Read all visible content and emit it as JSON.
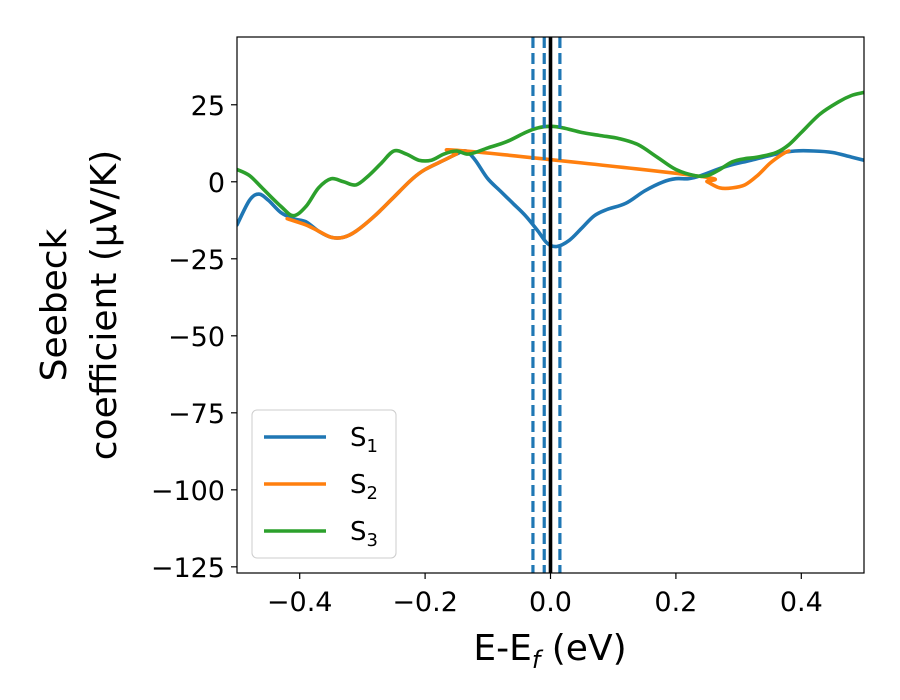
{
  "chart_data": {
    "type": "line",
    "xlabel": "E-E",
    "xlabel_sub": "f",
    "xlabel_unit": " (eV)",
    "ylabel_line1": "Seebeck",
    "ylabel_line2": "coefficient  (μV/K)",
    "xlim": [
      -0.5,
      0.5
    ],
    "ylim": [
      -127,
      47
    ],
    "xticks": [
      -0.4,
      -0.2,
      0.0,
      0.2,
      0.4
    ],
    "xtick_labels": [
      "−0.4",
      "−0.2",
      "0.0",
      "0.2",
      "0.4"
    ],
    "yticks": [
      25,
      0,
      -25,
      -50,
      -75,
      -100,
      -125
    ],
    "ytick_labels": [
      "25",
      "0",
      "−25",
      "−50",
      "−75",
      "−100",
      "−125"
    ],
    "legend_position": "lower-left",
    "grid": false,
    "vlines": [
      {
        "x": 0.0,
        "style": "solid",
        "color": "#000000"
      },
      {
        "x": -0.028,
        "style": "dashed",
        "color": "#1f77b4"
      },
      {
        "x": -0.01,
        "style": "dashed",
        "color": "#1f77b4"
      },
      {
        "x": 0.015,
        "style": "dashed",
        "color": "#1f77b4"
      }
    ],
    "series": [
      {
        "name": "S",
        "sub": "1",
        "color": "#1f77b4",
        "points": [
          [
            -0.5,
            -14
          ],
          [
            -0.48,
            -6
          ],
          [
            -0.465,
            -4
          ],
          [
            -0.45,
            -6
          ],
          [
            -0.43,
            -10
          ],
          [
            -0.41,
            -12
          ],
          [
            -0.39,
            -13
          ],
          [
            -0.37,
            -16
          ],
          [
            -0.35,
            -18
          ],
          [
            -0.33,
            -18
          ],
          [
            -0.31,
            -16
          ],
          [
            -0.28,
            -11
          ],
          [
            -0.25,
            -5
          ],
          [
            -0.22,
            1
          ],
          [
            -0.2,
            4
          ],
          [
            -0.17,
            7
          ],
          [
            -0.15,
            9
          ],
          [
            -0.135,
            10
          ],
          [
            -0.12,
            7
          ],
          [
            -0.1,
            1
          ],
          [
            -0.08,
            -3
          ],
          [
            -0.06,
            -7
          ],
          [
            -0.04,
            -11
          ],
          [
            -0.02,
            -16
          ],
          [
            -0.005,
            -20
          ],
          [
            0.01,
            -21
          ],
          [
            0.03,
            -19
          ],
          [
            0.05,
            -15
          ],
          [
            0.07,
            -11
          ],
          [
            0.09,
            -9
          ],
          [
            0.12,
            -7
          ],
          [
            0.15,
            -3
          ],
          [
            0.18,
            0
          ],
          [
            0.2,
            1
          ],
          [
            0.22,
            1
          ],
          [
            0.24,
            2
          ],
          [
            0.28,
            5
          ],
          [
            0.32,
            7
          ],
          [
            0.36,
            9
          ],
          [
            0.39,
            10
          ],
          [
            0.42,
            10
          ],
          [
            0.45,
            9.5
          ],
          [
            0.48,
            8
          ],
          [
            0.5,
            7
          ]
        ]
      },
      {
        "name": "S",
        "sub": "2",
        "color": "#ff7f0e",
        "points": [
          [
            -0.42,
            -12
          ],
          [
            -0.39,
            -14
          ],
          [
            -0.37,
            -16
          ],
          [
            -0.35,
            -18
          ],
          [
            -0.33,
            -18
          ],
          [
            -0.31,
            -16
          ],
          [
            -0.28,
            -11
          ],
          [
            -0.25,
            -5
          ],
          [
            -0.22,
            1
          ],
          [
            -0.2,
            4
          ],
          [
            -0.17,
            7
          ],
          [
            -0.15,
            9
          ],
          [
            -0.135,
            10
          ],
          [
            0.23,
            2
          ],
          [
            0.25,
            0
          ],
          [
            0.27,
            -2
          ],
          [
            0.29,
            -2
          ],
          [
            0.31,
            -1
          ],
          [
            0.33,
            2
          ],
          [
            0.35,
            6
          ],
          [
            0.37,
            9
          ],
          [
            0.38,
            10
          ]
        ]
      },
      {
        "name": "S",
        "sub": "3",
        "color": "#2ca02c",
        "points": [
          [
            -0.5,
            4
          ],
          [
            -0.48,
            2
          ],
          [
            -0.46,
            -2
          ],
          [
            -0.43,
            -8
          ],
          [
            -0.41,
            -11
          ],
          [
            -0.39,
            -8
          ],
          [
            -0.37,
            -2
          ],
          [
            -0.35,
            1
          ],
          [
            -0.33,
            0
          ],
          [
            -0.31,
            -1
          ],
          [
            -0.29,
            2
          ],
          [
            -0.27,
            6
          ],
          [
            -0.25,
            10
          ],
          [
            -0.23,
            9
          ],
          [
            -0.21,
            7
          ],
          [
            -0.19,
            7
          ],
          [
            -0.17,
            9
          ],
          [
            -0.15,
            10
          ],
          [
            -0.13,
            9
          ],
          [
            -0.1,
            11
          ],
          [
            -0.07,
            13
          ],
          [
            -0.04,
            16
          ],
          [
            -0.02,
            17.5
          ],
          [
            0.0,
            18
          ],
          [
            0.02,
            17.5
          ],
          [
            0.05,
            16
          ],
          [
            0.08,
            15
          ],
          [
            0.11,
            14
          ],
          [
            0.14,
            12
          ],
          [
            0.17,
            8
          ],
          [
            0.2,
            4
          ],
          [
            0.23,
            2
          ],
          [
            0.25,
            2
          ],
          [
            0.27,
            4
          ],
          [
            0.29,
            6.5
          ],
          [
            0.31,
            7.5
          ],
          [
            0.33,
            8
          ],
          [
            0.36,
            9.5
          ],
          [
            0.38,
            12
          ],
          [
            0.4,
            16
          ],
          [
            0.43,
            22
          ],
          [
            0.46,
            26
          ],
          [
            0.48,
            28
          ],
          [
            0.5,
            29
          ]
        ]
      }
    ]
  }
}
